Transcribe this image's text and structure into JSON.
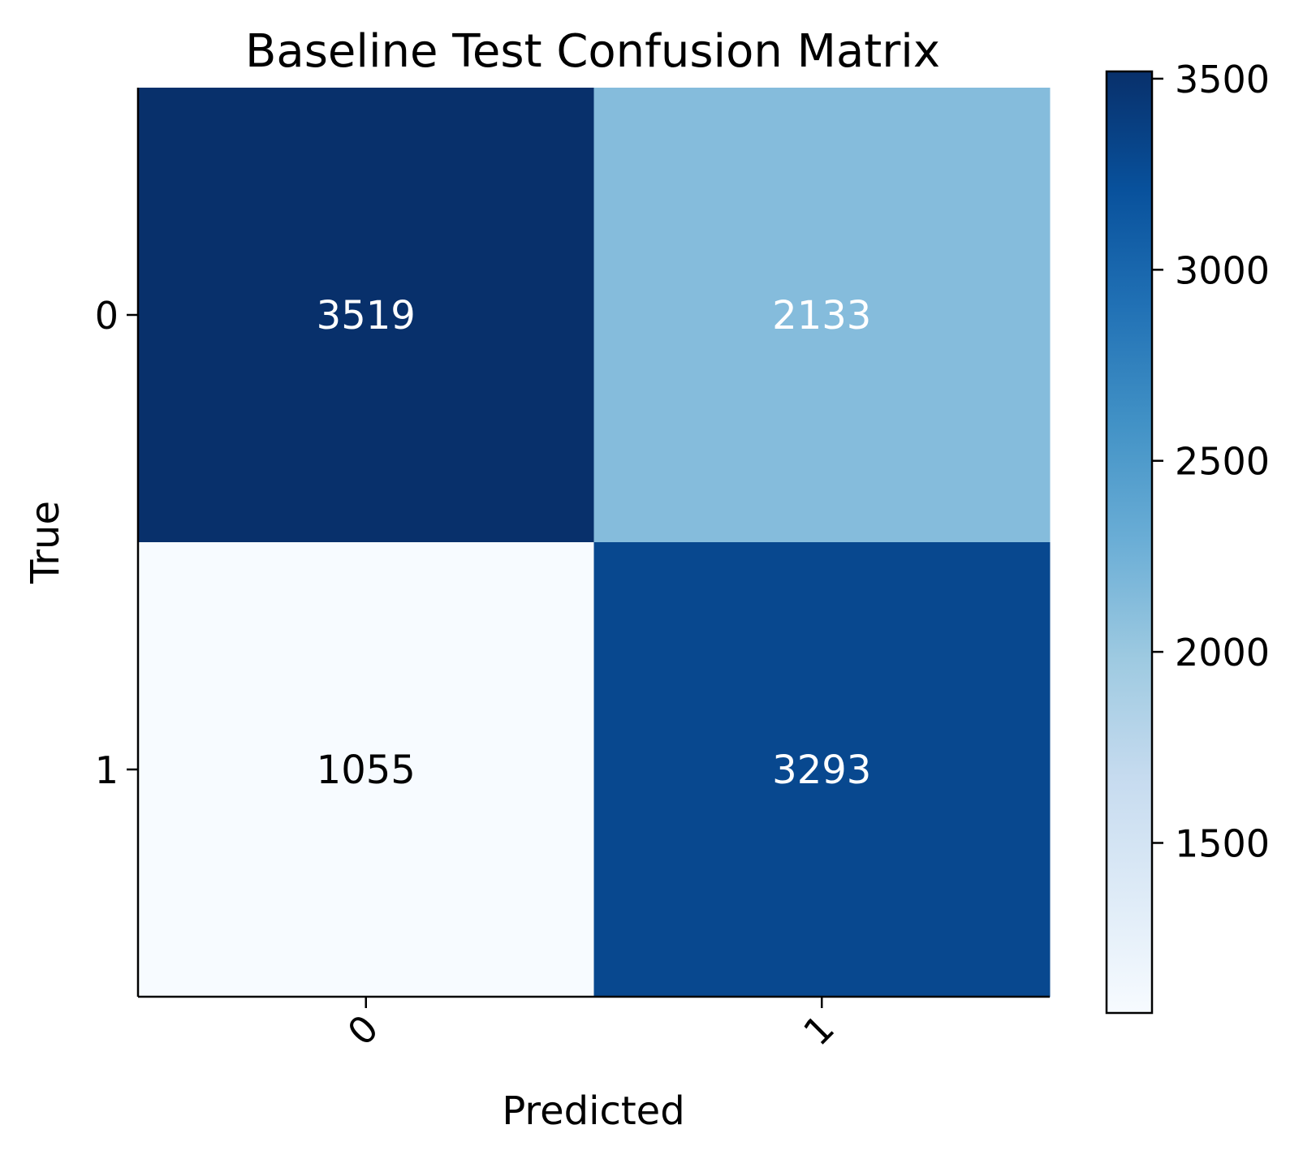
{
  "chart_data": {
    "type": "heatmap",
    "title": "Baseline Test Confusion Matrix",
    "xlabel": "Predicted",
    "ylabel": "True",
    "x_categories": [
      "0",
      "1"
    ],
    "y_categories": [
      "0",
      "1"
    ],
    "matrix": [
      [
        3519,
        2133
      ],
      [
        1055,
        3293
      ]
    ],
    "colormap": "Blues",
    "colorbar": {
      "ticks": [
        "1500",
        "2000",
        "2500",
        "3000",
        "3500"
      ],
      "tick_values": [
        1500,
        2000,
        2500,
        3000,
        3500
      ],
      "min": 1055,
      "max": 3519
    },
    "x_tick_rotation_deg": 45,
    "grid": false
  }
}
